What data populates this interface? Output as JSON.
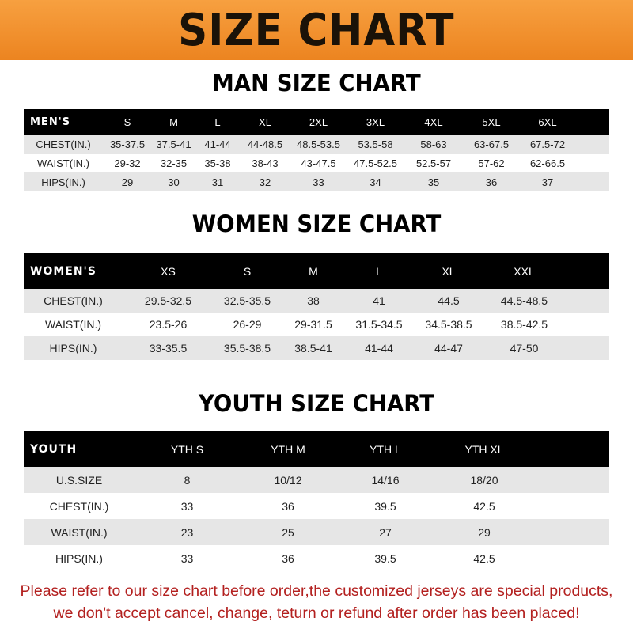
{
  "banner_title": "SIZE CHART",
  "men": {
    "title": "MAN SIZE CHART",
    "header": [
      "MEN'S",
      "S",
      "M",
      "L",
      "XL",
      "2XL",
      "3XL",
      "4XL",
      "5XL",
      "6XL"
    ],
    "rows": [
      [
        "CHEST(IN.)",
        "35-37.5",
        "37.5-41",
        "41-44",
        "44-48.5",
        "48.5-53.5",
        "53.5-58",
        "58-63",
        "63-67.5",
        "67.5-72"
      ],
      [
        "WAIST(IN.)",
        "29-32",
        "32-35",
        "35-38",
        "38-43",
        "43-47.5",
        "47.5-52.5",
        "52.5-57",
        "57-62",
        "62-66.5"
      ],
      [
        "HIPS(IN.)",
        "29",
        "30",
        "31",
        "32",
        "33",
        "34",
        "35",
        "36",
        "37"
      ]
    ]
  },
  "women": {
    "title": "WOMEN SIZE CHART",
    "header": [
      "WOMEN'S",
      "XS",
      "S",
      "M",
      "L",
      "XL",
      "XXL"
    ],
    "rows": [
      [
        "CHEST(IN.)",
        "29.5-32.5",
        "32.5-35.5",
        "38",
        "41",
        "44.5",
        "44.5-48.5"
      ],
      [
        "WAIST(IN.)",
        "23.5-26",
        "26-29",
        "29-31.5",
        "31.5-34.5",
        "34.5-38.5",
        "38.5-42.5"
      ],
      [
        "HIPS(IN.)",
        "33-35.5",
        "35.5-38.5",
        "38.5-41",
        "41-44",
        "44-47",
        "47-50"
      ]
    ]
  },
  "youth": {
    "title": "YOUTH SIZE CHART",
    "header": [
      "YOUTH",
      "YTH S",
      "YTH M",
      "YTH L",
      "YTH XL"
    ],
    "rows": [
      [
        "U.S.SIZE",
        "8",
        "10/12",
        "14/16",
        "18/20"
      ],
      [
        "CHEST(IN.)",
        "33",
        "36",
        "39.5",
        "42.5"
      ],
      [
        "WAIST(IN.)",
        "23",
        "25",
        "27",
        "29"
      ],
      [
        "HIPS(IN.)",
        "33",
        "36",
        "39.5",
        "42.5"
      ]
    ]
  },
  "notice": {
    "line1": "Please refer to our size chart before order,the customized jerseys are special products,",
    "line2": "we don't accept cancel, change, teturn or refund after order has been placed!"
  },
  "colors": {
    "banner": "#ec8420",
    "header_row": "#000000",
    "stripe": "#e6e6e6",
    "notice": "#b3201f"
  }
}
